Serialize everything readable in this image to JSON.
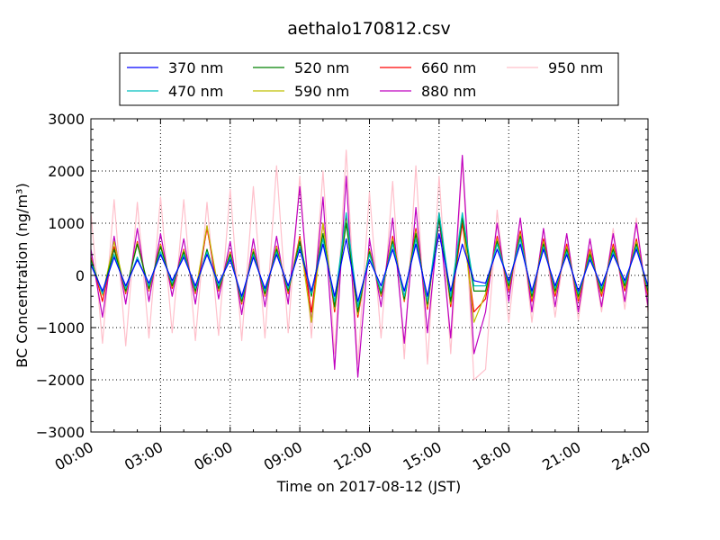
{
  "chart_data": {
    "type": "line",
    "title": "aethalo170812.csv",
    "xlabel": "Time on 2017-08-12 (JST)",
    "ylabel": "BC Concentration (ng/m³)",
    "xlim": [
      "00:00",
      "24:00"
    ],
    "ylim": [
      -3000,
      3000
    ],
    "x_ticks": [
      "00:00",
      "03:00",
      "06:00",
      "09:00",
      "12:00",
      "15:00",
      "18:00",
      "21:00",
      "24:00"
    ],
    "y_ticks": [
      "−3000",
      "−2000",
      "−1000",
      "0",
      "1000",
      "2000",
      "3000"
    ],
    "grid": true,
    "legend_position": "top",
    "x": [
      "00:00",
      "00:30",
      "01:00",
      "01:30",
      "02:00",
      "02:30",
      "03:00",
      "03:30",
      "04:00",
      "04:30",
      "05:00",
      "05:30",
      "06:00",
      "06:30",
      "07:00",
      "07:30",
      "08:00",
      "08:30",
      "09:00",
      "09:30",
      "10:00",
      "10:30",
      "11:00",
      "11:30",
      "12:00",
      "12:30",
      "13:00",
      "13:30",
      "14:00",
      "14:30",
      "15:00",
      "15:30",
      "16:00",
      "16:30",
      "17:00",
      "17:30",
      "18:00",
      "18:30",
      "19:00",
      "19:30",
      "20:00",
      "20:30",
      "21:00",
      "21:30",
      "22:00",
      "22:30",
      "23:00",
      "23:30",
      "24:00"
    ],
    "series": [
      {
        "name": "370 nm",
        "color": "#0000ff",
        "values": [
          200,
          -300,
          350,
          -200,
          300,
          -150,
          400,
          -100,
          350,
          -200,
          400,
          -150,
          300,
          -400,
          350,
          -250,
          400,
          -200,
          500,
          -300,
          600,
          -400,
          700,
          -500,
          300,
          -200,
          500,
          -300,
          600,
          -400,
          800,
          -300,
          600,
          -100,
          -150,
          500,
          -100,
          600,
          -300,
          500,
          -200,
          400,
          -300,
          300,
          -200,
          400,
          -100,
          500,
          -200
        ]
      },
      {
        "name": "470 nm",
        "color": "#00bfbf",
        "values": [
          250,
          -350,
          400,
          -250,
          350,
          -200,
          450,
          -150,
          400,
          -250,
          450,
          -200,
          350,
          -450,
          400,
          -300,
          450,
          -250,
          550,
          -350,
          700,
          -500,
          1200,
          -600,
          400,
          -300,
          600,
          -400,
          700,
          -500,
          1200,
          -400,
          1200,
          -200,
          -200,
          600,
          -150,
          700,
          -350,
          550,
          -250,
          450,
          -350,
          350,
          -250,
          450,
          -150,
          550,
          -250
        ]
      },
      {
        "name": "520 nm",
        "color": "#008000",
        "values": [
          300,
          -350,
          500,
          -300,
          600,
          -250,
          550,
          -200,
          450,
          -300,
          500,
          -250,
          400,
          -500,
          450,
          -350,
          500,
          -300,
          650,
          -400,
          800,
          -600,
          1000,
          -700,
          450,
          -350,
          650,
          -450,
          800,
          -550,
          1100,
          -500,
          1100,
          -300,
          -300,
          650,
          -200,
          750,
          -400,
          600,
          -300,
          500,
          -400,
          400,
          -300,
          500,
          -200,
          600,
          -300
        ]
      },
      {
        "name": "590 nm",
        "color": "#bfbf00",
        "values": [
          320,
          -380,
          650,
          -320,
          620,
          -280,
          580,
          -220,
          480,
          -320,
          950,
          -280,
          420,
          -520,
          480,
          -380,
          540,
          -320,
          700,
          -900,
          1000,
          -650,
          1050,
          -750,
          480,
          -380,
          700,
          -480,
          850,
          -600,
          1150,
          -550,
          1150,
          -900,
          -350,
          700,
          -250,
          800,
          -450,
          650,
          -350,
          550,
          -450,
          450,
          -350,
          550,
          -250,
          650,
          -350
        ]
      },
      {
        "name": "660 nm",
        "color": "#ff0000",
        "values": [
          350,
          -500,
          550,
          -350,
          650,
          -300,
          600,
          -250,
          500,
          -350,
          900,
          -300,
          450,
          -550,
          500,
          -400,
          560,
          -350,
          750,
          -700,
          1000,
          -700,
          1100,
          -800,
          500,
          -400,
          750,
          -500,
          900,
          -650,
          1200,
          -600,
          1000,
          -700,
          -450,
          750,
          -300,
          850,
          -500,
          700,
          -400,
          600,
          -500,
          500,
          -400,
          600,
          -300,
          700,
          -400
        ]
      },
      {
        "name": "880 nm",
        "color": "#bf00bf",
        "values": [
          500,
          -800,
          750,
          -550,
          900,
          -500,
          800,
          -400,
          700,
          -550,
          950,
          -450,
          650,
          -750,
          700,
          -600,
          750,
          -550,
          1700,
          -900,
          1500,
          -1800,
          1900,
          -1950,
          700,
          -600,
          1100,
          -1300,
          1300,
          -1100,
          1100,
          -1200,
          2300,
          -1500,
          -700,
          1000,
          -500,
          1100,
          -700,
          900,
          -600,
          800,
          -700,
          700,
          -600,
          800,
          -500,
          1000,
          -600
        ]
      },
      {
        "name": "950 nm",
        "color": "#ffc0cb",
        "values": [
          1200,
          -1300,
          1450,
          -1350,
          1400,
          -1200,
          1500,
          -1100,
          1450,
          -1250,
          1400,
          -1150,
          1650,
          -1250,
          1700,
          -1200,
          2100,
          -1100,
          1900,
          -1200,
          2000,
          -1500,
          2400,
          -1700,
          1600,
          -1200,
          1800,
          -1600,
          2100,
          -1700,
          1900,
          -1500,
          2200,
          -2000,
          -1800,
          1250,
          -900,
          1100,
          -900,
          900,
          -800,
          800,
          -850,
          700,
          -700,
          900,
          -650,
          1100,
          -700
        ]
      }
    ]
  }
}
